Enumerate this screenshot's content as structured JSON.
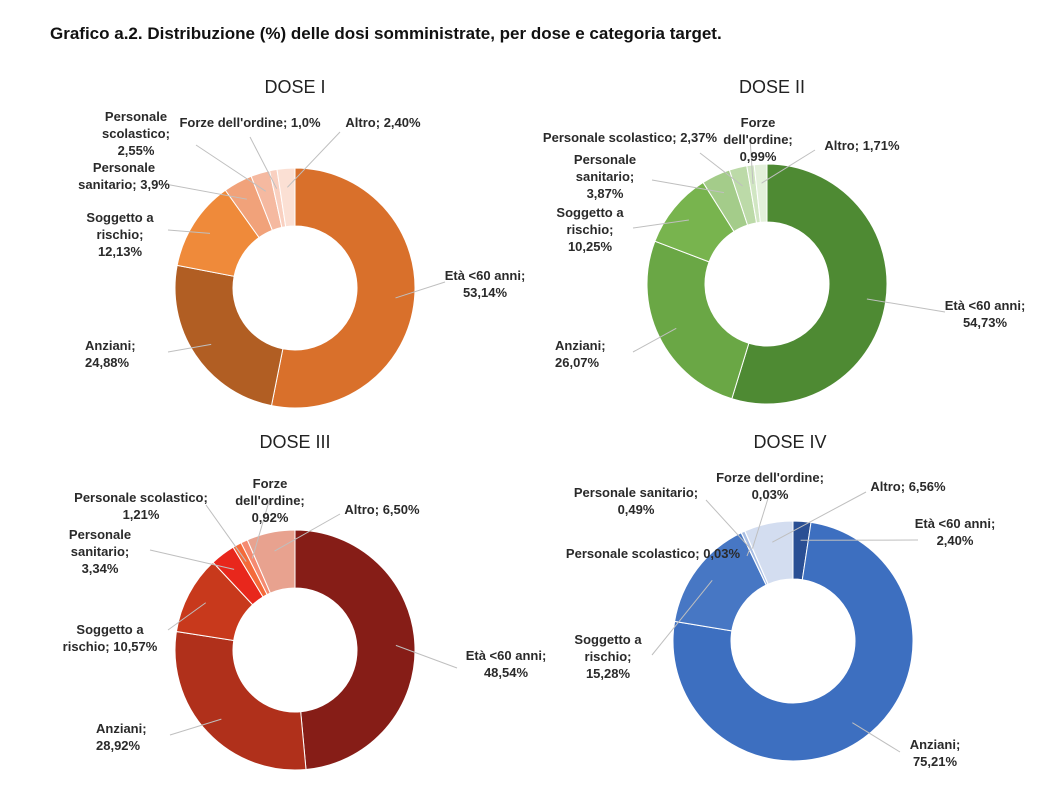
{
  "page": {
    "title": "Grafico a.2. Distribuzione (%) delle dosi somministrate, per dose e categoria target."
  },
  "chart_data": [
    {
      "type": "pie",
      "title": "DOSE I",
      "categories": [
        "Età <60 anni",
        "Anziani",
        "Soggetto a rischio",
        "Personale sanitario",
        "Personale scolastico",
        "Forze dell'ordine",
        "Altro"
      ],
      "values": [
        53.14,
        24.88,
        12.13,
        3.9,
        2.55,
        1.0,
        2.4
      ],
      "labels": [
        [
          "Età <60 anni;",
          "53,14%"
        ],
        [
          "Anziani;",
          "24,88%"
        ],
        [
          "Soggetto a",
          "rischio;",
          "12,13%"
        ],
        [
          "Personale",
          "sanitario; 3,9%"
        ],
        [
          "Personale",
          "scolastico;",
          "2,55%"
        ],
        [
          "Forze dell'ordine; 1,0%"
        ],
        [
          "Altro; 2,40%"
        ]
      ],
      "colors": [
        "#d9702b",
        "#b15e23",
        "#ef8a3a",
        "#f1a27a",
        "#f5b9a0",
        "#f9d0c0",
        "#fbe0d4"
      ]
    },
    {
      "type": "pie",
      "title": "DOSE II",
      "categories": [
        "Età <60 anni",
        "Anziani",
        "Soggetto a rischio",
        "Personale sanitario",
        "Personale scolastico",
        "Forze dell'ordine",
        "Altro"
      ],
      "values": [
        54.73,
        26.07,
        10.25,
        3.87,
        2.37,
        0.99,
        1.71
      ],
      "labels": [
        [
          "Età <60 anni;",
          "54,73%"
        ],
        [
          "Anziani;",
          "26,07%"
        ],
        [
          "Soggetto a",
          "rischio;",
          "10,25%"
        ],
        [
          "Personale",
          "sanitario;",
          "3,87%"
        ],
        [
          "Personale scolastico; 2,37%"
        ],
        [
          "Forze",
          "dell'ordine;",
          "0,99%"
        ],
        [
          "Altro; 1,71%"
        ]
      ],
      "colors": [
        "#4e8a33",
        "#6aa745",
        "#78b44e",
        "#a4cc8a",
        "#bcdaa8",
        "#d1e6c3",
        "#e3f0da"
      ]
    },
    {
      "type": "pie",
      "title": "DOSE III",
      "categories": [
        "Età <60 anni",
        "Anziani",
        "Soggetto a rischio",
        "Personale sanitario",
        "Personale scolastico",
        "Forze dell'ordine",
        "Altro"
      ],
      "values": [
        48.54,
        28.92,
        10.57,
        3.34,
        1.21,
        0.92,
        6.5
      ],
      "labels": [
        [
          "Età <60 anni;",
          "48,54%"
        ],
        [
          "Anziani;",
          "28,92%"
        ],
        [
          "Soggetto a",
          "rischio; 10,57%"
        ],
        [
          "Personale",
          "sanitario;",
          "3,34%"
        ],
        [
          "Personale scolastico;",
          "1,21%"
        ],
        [
          "Forze",
          "dell'ordine;",
          "0,92%"
        ],
        [
          "Altro; 6,50%"
        ]
      ],
      "colors": [
        "#861d17",
        "#b0301b",
        "#c8391c",
        "#e8271c",
        "#f46a3a",
        "#f58a70",
        "#e8a28f"
      ]
    },
    {
      "type": "pie",
      "title": "DOSE IV",
      "categories": [
        "Età <60 anni",
        "Anziani",
        "Soggetto a rischio",
        "Personale scolastico",
        "Personale sanitario",
        "Forze dell'ordine",
        "Altro"
      ],
      "values": [
        2.4,
        75.21,
        15.28,
        0.03,
        0.49,
        0.03,
        6.56
      ],
      "labels": [
        [
          "Età <60 anni;",
          "2,40%"
        ],
        [
          "Anziani;",
          "75,21%"
        ],
        [
          "Soggetto a",
          "rischio;",
          "15,28%"
        ],
        [
          "Personale scolastico; 0,03%"
        ],
        [
          "Personale sanitario;",
          "0,49%"
        ],
        [
          "Forze dell'ordine;",
          "0,03%"
        ],
        [
          "Altro; 6,56%"
        ]
      ],
      "colors": [
        "#2a4f94",
        "#3d6fc0",
        "#4777c4",
        "#8ea9d8",
        "#a6bce2",
        "#c2d0ea",
        "#d3ddf0"
      ]
    }
  ]
}
